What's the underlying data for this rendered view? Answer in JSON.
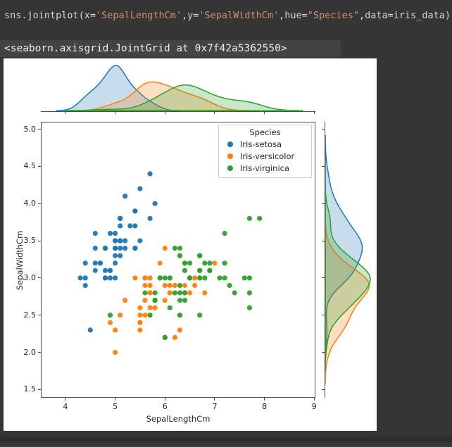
{
  "editor": {
    "code_tokens": [
      {
        "t": "sns.jointplot(x=",
        "kind": "code"
      },
      {
        "t": "'SepalLengthCm'",
        "kind": "string"
      },
      {
        "t": ",y=",
        "kind": "code"
      },
      {
        "t": "'SepalWidthCm'",
        "kind": "string"
      },
      {
        "t": ",hue=",
        "kind": "code"
      },
      {
        "t": "\"Species\"",
        "kind": "string"
      },
      {
        "t": ",data=iris_data)",
        "kind": "code"
      }
    ]
  },
  "output": {
    "repr": "<seaborn.axisgrid.JointGrid at 0x7f42a5362550>"
  },
  "chart_data": {
    "type": "scatter",
    "subtype": "seaborn-jointplot-with-kde-marginals",
    "xlabel": "SepalLengthCm",
    "ylabel": "SepalWidthCm",
    "xlim": [
      3.52,
      9.01
    ],
    "ylim": [
      1.4,
      5.09
    ],
    "xticks": [
      "4",
      "5",
      "6",
      "7",
      "8",
      "9"
    ],
    "yticks": [
      "1.5",
      "2.0",
      "2.5",
      "3.0",
      "3.5",
      "4.0",
      "4.5",
      "5.0"
    ],
    "grid": false,
    "legend": {
      "title": "Species",
      "position": "upper right"
    },
    "marginals": {
      "top": "kde of SepalLengthCm per species",
      "right": "kde of SepalWidthCm per species",
      "fill_opacity": 0.25
    },
    "series": [
      {
        "name": "Iris-setosa",
        "color": "#1f77b4",
        "points": [
          [
            5.1,
            3.5
          ],
          [
            4.9,
            3.0
          ],
          [
            4.7,
            3.2
          ],
          [
            4.6,
            3.1
          ],
          [
            5.0,
            3.6
          ],
          [
            5.4,
            3.9
          ],
          [
            4.6,
            3.4
          ],
          [
            5.0,
            3.4
          ],
          [
            4.4,
            2.9
          ],
          [
            4.9,
            3.1
          ],
          [
            5.4,
            3.7
          ],
          [
            4.8,
            3.4
          ],
          [
            4.8,
            3.0
          ],
          [
            4.3,
            3.0
          ],
          [
            5.8,
            4.0
          ],
          [
            5.7,
            4.4
          ],
          [
            5.4,
            3.9
          ],
          [
            5.1,
            3.5
          ],
          [
            5.7,
            3.8
          ],
          [
            5.1,
            3.8
          ],
          [
            5.4,
            3.4
          ],
          [
            5.1,
            3.7
          ],
          [
            4.6,
            3.6
          ],
          [
            5.1,
            3.3
          ],
          [
            4.8,
            3.4
          ],
          [
            5.0,
            3.0
          ],
          [
            5.0,
            3.4
          ],
          [
            5.2,
            3.5
          ],
          [
            5.2,
            3.4
          ],
          [
            4.7,
            3.2
          ],
          [
            4.8,
            3.1
          ],
          [
            5.4,
            3.4
          ],
          [
            5.2,
            4.1
          ],
          [
            5.5,
            4.2
          ],
          [
            4.9,
            3.1
          ],
          [
            5.0,
            3.2
          ],
          [
            5.5,
            3.5
          ],
          [
            4.9,
            3.6
          ],
          [
            4.4,
            3.0
          ],
          [
            5.1,
            3.4
          ],
          [
            5.0,
            3.5
          ],
          [
            4.5,
            2.3
          ],
          [
            4.4,
            3.2
          ],
          [
            5.0,
            3.5
          ],
          [
            5.1,
            3.8
          ],
          [
            4.8,
            3.0
          ],
          [
            5.1,
            3.8
          ],
          [
            4.6,
            3.2
          ],
          [
            5.3,
            3.7
          ],
          [
            5.0,
            3.3
          ]
        ]
      },
      {
        "name": "Iris-versicolor",
        "color": "#ff7f0e",
        "points": [
          [
            7.0,
            3.2
          ],
          [
            6.4,
            3.2
          ],
          [
            6.9,
            3.1
          ],
          [
            5.5,
            2.3
          ],
          [
            6.5,
            2.8
          ],
          [
            5.7,
            2.8
          ],
          [
            6.3,
            3.3
          ],
          [
            4.9,
            2.4
          ],
          [
            6.6,
            2.9
          ],
          [
            5.2,
            2.7
          ],
          [
            5.0,
            2.0
          ],
          [
            5.9,
            3.0
          ],
          [
            6.0,
            2.2
          ],
          [
            6.1,
            2.9
          ],
          [
            5.6,
            2.9
          ],
          [
            6.7,
            3.1
          ],
          [
            5.6,
            3.0
          ],
          [
            5.8,
            2.7
          ],
          [
            6.2,
            2.2
          ],
          [
            5.6,
            2.5
          ],
          [
            5.9,
            3.2
          ],
          [
            6.1,
            2.8
          ],
          [
            6.3,
            2.5
          ],
          [
            6.1,
            2.8
          ],
          [
            6.4,
            2.9
          ],
          [
            6.6,
            3.0
          ],
          [
            6.8,
            2.8
          ],
          [
            6.7,
            3.0
          ],
          [
            6.0,
            2.9
          ],
          [
            5.7,
            2.6
          ],
          [
            5.5,
            2.4
          ],
          [
            5.5,
            2.4
          ],
          [
            5.8,
            2.7
          ],
          [
            6.0,
            2.7
          ],
          [
            5.4,
            3.0
          ],
          [
            6.0,
            3.4
          ],
          [
            6.7,
            3.1
          ],
          [
            6.3,
            2.3
          ],
          [
            5.6,
            3.0
          ],
          [
            5.5,
            2.5
          ],
          [
            5.5,
            2.6
          ],
          [
            6.1,
            3.0
          ],
          [
            5.8,
            2.6
          ],
          [
            5.0,
            2.3
          ],
          [
            5.6,
            2.7
          ],
          [
            5.7,
            3.0
          ],
          [
            5.7,
            2.9
          ],
          [
            6.2,
            2.9
          ],
          [
            5.1,
            2.5
          ],
          [
            5.7,
            2.8
          ]
        ]
      },
      {
        "name": "Iris-virginica",
        "color": "#2ca02c",
        "points": [
          [
            6.3,
            3.3
          ],
          [
            5.8,
            2.7
          ],
          [
            7.1,
            3.0
          ],
          [
            6.3,
            2.9
          ],
          [
            6.5,
            3.0
          ],
          [
            7.6,
            3.0
          ],
          [
            4.9,
            2.5
          ],
          [
            7.3,
            2.9
          ],
          [
            6.7,
            2.5
          ],
          [
            7.2,
            3.6
          ],
          [
            6.5,
            3.2
          ],
          [
            6.4,
            2.7
          ],
          [
            6.8,
            3.0
          ],
          [
            5.7,
            2.5
          ],
          [
            5.8,
            2.8
          ],
          [
            6.4,
            3.2
          ],
          [
            6.5,
            3.0
          ],
          [
            7.7,
            3.8
          ],
          [
            7.7,
            2.6
          ],
          [
            6.0,
            2.2
          ],
          [
            6.9,
            3.2
          ],
          [
            5.6,
            2.8
          ],
          [
            7.7,
            2.8
          ],
          [
            6.3,
            2.7
          ],
          [
            6.7,
            3.3
          ],
          [
            7.2,
            3.2
          ],
          [
            6.2,
            2.8
          ],
          [
            6.1,
            3.0
          ],
          [
            6.4,
            2.8
          ],
          [
            7.2,
            3.0
          ],
          [
            7.4,
            2.8
          ],
          [
            7.9,
            3.8
          ],
          [
            6.4,
            2.8
          ],
          [
            6.3,
            2.8
          ],
          [
            6.1,
            2.6
          ],
          [
            7.7,
            3.0
          ],
          [
            6.3,
            3.4
          ],
          [
            6.4,
            3.1
          ],
          [
            6.0,
            3.0
          ],
          [
            6.9,
            3.1
          ],
          [
            6.7,
            3.1
          ],
          [
            6.9,
            3.1
          ],
          [
            5.8,
            2.7
          ],
          [
            6.8,
            3.2
          ],
          [
            6.7,
            3.3
          ],
          [
            6.7,
            3.0
          ],
          [
            6.3,
            2.5
          ],
          [
            6.5,
            3.0
          ],
          [
            6.2,
            3.4
          ],
          [
            5.9,
            3.0
          ]
        ]
      }
    ]
  },
  "colors": {
    "page_bg": "#353535",
    "output_highlight_bg": "#434343",
    "code_text": "#d6d6d6",
    "string_text": "#ce9178",
    "figure_bg": "#ffffff",
    "axis_text": "#262626",
    "spine": "#4d4d4d"
  }
}
